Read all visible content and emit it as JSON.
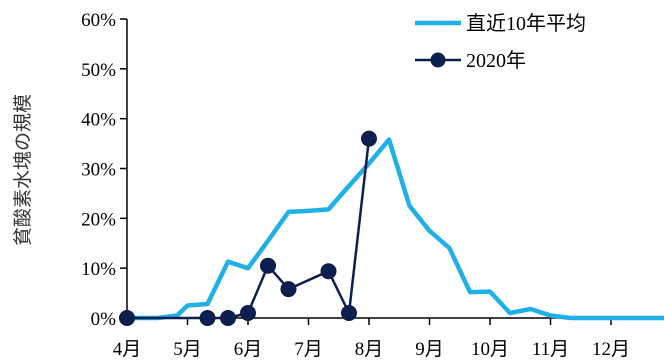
{
  "chart_data": {
    "type": "line",
    "title": "",
    "xlabel": "",
    "ylabel": "貧酸素水塊の規模",
    "categories": [
      "4月",
      "5月",
      "6月",
      "7月",
      "8月",
      "9月",
      "10月",
      "11月",
      "12月"
    ],
    "ylim": [
      0,
      60
    ],
    "yticks": [
      0,
      10,
      20,
      30,
      40,
      50,
      60
    ],
    "ytick_labels": [
      "0%",
      "10%",
      "20%",
      "30%",
      "40%",
      "50%",
      "60%"
    ],
    "legend_position": "top-right",
    "grid": false,
    "series": [
      {
        "name": "直近10年平均",
        "color": "#1EB0E6",
        "marker": "none",
        "x": [
          0.0,
          0.5,
          0.83,
          1.0,
          1.33,
          1.67,
          2.0,
          2.33,
          2.67,
          3.0,
          3.33,
          3.67,
          4.0,
          4.33,
          4.67,
          5.0,
          5.33,
          5.67,
          6.0,
          6.33,
          6.67,
          7.0,
          7.33,
          7.67,
          8.0,
          8.33,
          8.67,
          9.0
        ],
        "values": [
          0,
          0,
          0.5,
          2.5,
          2.8,
          11.3,
          10.0,
          15.5,
          21.3,
          21.5,
          21.8,
          26.5,
          31.0,
          35.8,
          22.5,
          17.5,
          14.0,
          5.2,
          5.3,
          1.0,
          1.8,
          0.5,
          0,
          0,
          0,
          0,
          0,
          0
        ]
      },
      {
        "name": "2020年",
        "color": "#0D1F4F",
        "marker": "circle",
        "x": [
          0.0,
          1.33,
          1.67,
          2.0,
          2.33,
          2.67,
          3.33,
          3.67,
          4.0
        ],
        "values": [
          0,
          0,
          0,
          1.0,
          10.5,
          5.8,
          9.4,
          1.0,
          36.0
        ]
      }
    ]
  }
}
